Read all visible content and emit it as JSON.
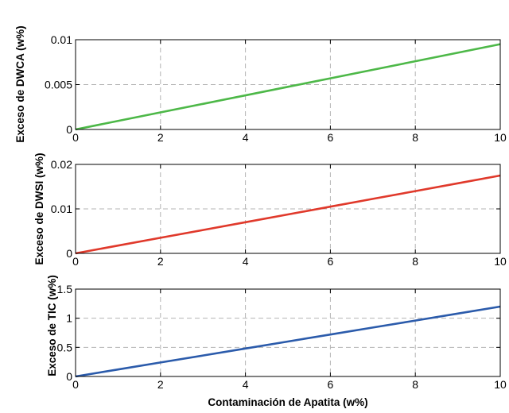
{
  "chart_data": [
    {
      "type": "line",
      "ylabel": "Exceso de DWCA (w%)",
      "xlim": [
        0,
        10
      ],
      "ylim": [
        0,
        0.01
      ],
      "xticks": [
        0,
        2,
        4,
        6,
        8,
        10
      ],
      "xtick_labels": [
        "0",
        "2",
        "4",
        "6",
        "8",
        "10"
      ],
      "yticks": [
        0,
        0.005,
        0.01
      ],
      "ytick_labels": [
        "0",
        "0.005",
        "0.01"
      ],
      "grid": true,
      "color": "#4db848",
      "series": [
        {
          "x": [
            0,
            1,
            2,
            3,
            4,
            5,
            6,
            7,
            8,
            9,
            10
          ],
          "y": [
            0,
            0.00095,
            0.0019,
            0.00285,
            0.0038,
            0.00475,
            0.0057,
            0.00665,
            0.0076,
            0.00855,
            0.0095
          ]
        }
      ]
    },
    {
      "type": "line",
      "ylabel": "Exceso de DWSI (w%)",
      "xlim": [
        0,
        10
      ],
      "ylim": [
        0,
        0.02
      ],
      "xticks": [
        0,
        2,
        4,
        6,
        8,
        10
      ],
      "xtick_labels": [
        "0",
        "2",
        "4",
        "6",
        "8",
        "10"
      ],
      "yticks": [
        0,
        0.01,
        0.02
      ],
      "ytick_labels": [
        "0",
        "0.01",
        "0.02"
      ],
      "grid": true,
      "color": "#e0392b",
      "series": [
        {
          "x": [
            0,
            1,
            2,
            3,
            4,
            5,
            6,
            7,
            8,
            9,
            10
          ],
          "y": [
            0,
            0.00175,
            0.0035,
            0.00525,
            0.007,
            0.00875,
            0.0105,
            0.01225,
            0.014,
            0.01575,
            0.0175
          ]
        }
      ]
    },
    {
      "type": "line",
      "ylabel": "Exceso de TIC (w%)",
      "xlabel": "Contaminación de Apatita (w%)",
      "xlim": [
        0,
        10
      ],
      "ylim": [
        0,
        1.5
      ],
      "xticks": [
        0,
        2,
        4,
        6,
        8,
        10
      ],
      "xtick_labels": [
        "0",
        "2",
        "4",
        "6",
        "8",
        "10"
      ],
      "yticks": [
        0,
        0.5,
        1,
        1.5
      ],
      "ytick_labels": [
        "0",
        "0.5",
        "1",
        "1.5"
      ],
      "grid": true,
      "color": "#2b5bab",
      "series": [
        {
          "x": [
            0,
            1,
            2,
            3,
            4,
            5,
            6,
            7,
            8,
            9,
            10
          ],
          "y": [
            0,
            0.12,
            0.24,
            0.36,
            0.48,
            0.6,
            0.72,
            0.84,
            0.96,
            1.08,
            1.2
          ]
        }
      ]
    }
  ]
}
